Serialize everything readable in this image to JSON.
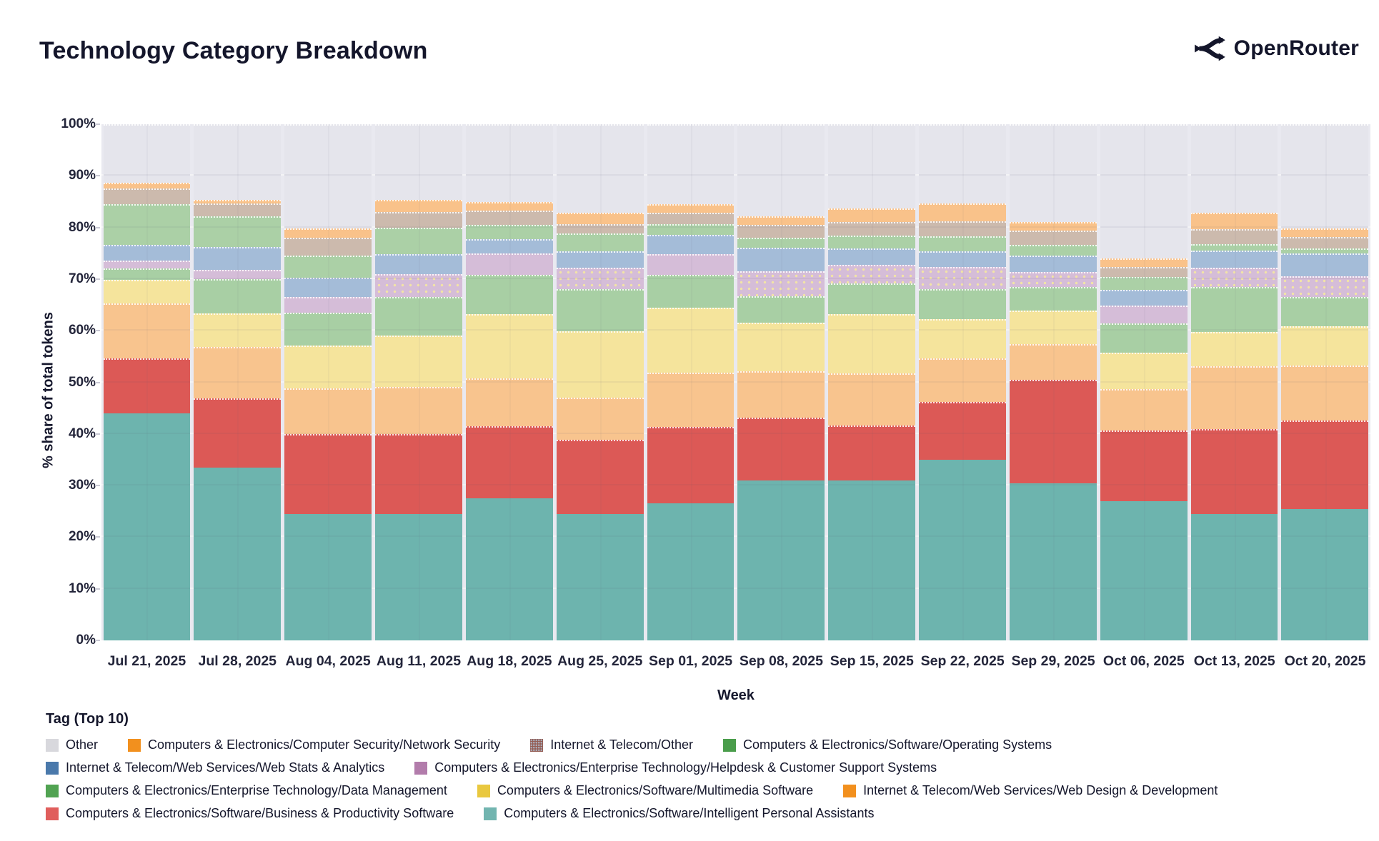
{
  "header": {
    "title": "Technology Category Breakdown",
    "brand": "OpenRouter"
  },
  "chart_data": {
    "type": "bar",
    "stacked": true,
    "title": "Technology Category Breakdown",
    "xlabel": "Week",
    "ylabel": "% share of total tokens",
    "ylim": [
      0,
      100
    ],
    "grid": true,
    "legend_position": "bottom",
    "legend_title": "Tag (Top 10)",
    "yticks": [
      "0%",
      "10%",
      "20%",
      "30%",
      "40%",
      "50%",
      "60%",
      "70%",
      "80%",
      "90%",
      "100%"
    ],
    "categories": [
      "Jul 21, 2025",
      "Jul 28, 2025",
      "Aug 04, 2025",
      "Aug 11, 2025",
      "Aug 18, 2025",
      "Aug 25, 2025",
      "Sep 01, 2025",
      "Sep 08, 2025",
      "Sep 15, 2025",
      "Sep 22, 2025",
      "Sep 29, 2025",
      "Oct 06, 2025",
      "Oct 13, 2025",
      "Oct 20, 2025"
    ],
    "series": [
      {
        "name": "Computers & Electronics/Software/Intelligent Personal Assistants",
        "color": "#72b5b0",
        "bar_color": "#6db4ae",
        "values": [
          44.0,
          33.5,
          24.5,
          24.5,
          27.5,
          24.5,
          26.5,
          31.0,
          31.0,
          35.0,
          30.5,
          27.0,
          24.5,
          25.5
        ]
      },
      {
        "name": "Computers & Electronics/Software/Business & Productivity Software",
        "color": "#e05e5c",
        "bar_color": "#dc5956",
        "values": [
          10.7,
          13.4,
          15.5,
          15.5,
          14.0,
          14.4,
          14.9,
          12.2,
          10.6,
          11.2,
          20.0,
          13.7,
          16.5,
          17.1
        ]
      },
      {
        "name": "Internet & Telecom/Web Services/Web Design & Development",
        "color": "#f2901e",
        "bar_color": "#f8c48e",
        "values": [
          10.6,
          10.0,
          8.8,
          9.1,
          9.3,
          8.1,
          10.5,
          9.0,
          10.1,
          8.5,
          6.9,
          8.0,
          12.1,
          10.7
        ]
      },
      {
        "name": "Computers & Electronics/Software/Multimedia Software",
        "color": "#e9c83f",
        "bar_color": "#f5e49c",
        "values": [
          4.5,
          6.5,
          8.3,
          10.0,
          12.4,
          12.9,
          12.6,
          9.4,
          11.5,
          7.6,
          6.5,
          7.1,
          6.7,
          7.6
        ]
      },
      {
        "name": "Computers & Electronics/Enterprise Technology/Data Management",
        "color": "#51a352",
        "bar_color": "#a8cfa4",
        "values": [
          2.3,
          6.6,
          6.4,
          7.4,
          7.6,
          8.1,
          6.3,
          5.1,
          6.0,
          5.7,
          4.6,
          5.6,
          8.7,
          5.6
        ]
      },
      {
        "name": "Computers & Electronics/Enterprise Technology/Helpdesk & Customer Support Systems",
        "color": "#b27cab",
        "bar_color": "#d5bdd8",
        "pattern": "dots",
        "pattern_weeks": [
          3,
          5,
          7,
          8,
          9,
          10,
          12,
          13
        ],
        "values": [
          1.5,
          1.8,
          3.0,
          4.4,
          4.2,
          4.2,
          4.1,
          4.8,
          3.5,
          4.4,
          2.9,
          3.5,
          3.7,
          4.1
        ]
      },
      {
        "name": "Internet & Telecom/Web Services/Web Stats & Analytics",
        "color": "#4a79ab",
        "bar_color": "#a4bcd8",
        "values": [
          3.1,
          4.4,
          3.8,
          4.0,
          2.7,
          3.2,
          3.7,
          4.6,
          3.2,
          3.0,
          3.1,
          3.0,
          3.3,
          4.4
        ]
      },
      {
        "name": "Computers & Electronics/Software/Operating Systems",
        "color": "#4a9d4b",
        "bar_color": "#abd0a6",
        "values": [
          7.8,
          5.9,
          4.3,
          5.0,
          2.8,
          3.5,
          2.1,
          1.9,
          2.5,
          2.9,
          2.2,
          2.5,
          1.3,
          0.9
        ]
      },
      {
        "name": "Internet & Telecom/Other",
        "color": "#955e55",
        "bar_color": "#ccbaad",
        "legend_pattern": "dither",
        "values": [
          3.0,
          2.5,
          3.4,
          3.1,
          2.8,
          1.8,
          2.1,
          2.5,
          2.6,
          2.9,
          2.7,
          1.9,
          2.9,
          2.2
        ]
      },
      {
        "name": "Computers & Electronics/Computer Security/Network Security",
        "color": "#f2901e",
        "bar_color": "#f9c28a",
        "values": [
          1.2,
          0.8,
          1.8,
          2.4,
          1.6,
          2.1,
          1.7,
          1.6,
          2.7,
          3.5,
          1.6,
          1.7,
          3.1,
          1.7
        ]
      },
      {
        "name": "Other",
        "color": "#d8d8dd",
        "bar_color": "#e5e5ec",
        "values": [
          11.3,
          14.6,
          20.2,
          14.6,
          15.1,
          17.2,
          15.5,
          17.9,
          16.3,
          15.3,
          19.0,
          26.0,
          17.2,
          20.2
        ]
      }
    ],
    "legend_rows": [
      [
        10,
        9,
        8,
        7
      ],
      [
        6,
        5
      ],
      [
        4,
        3,
        2
      ],
      [
        1,
        0
      ]
    ]
  }
}
